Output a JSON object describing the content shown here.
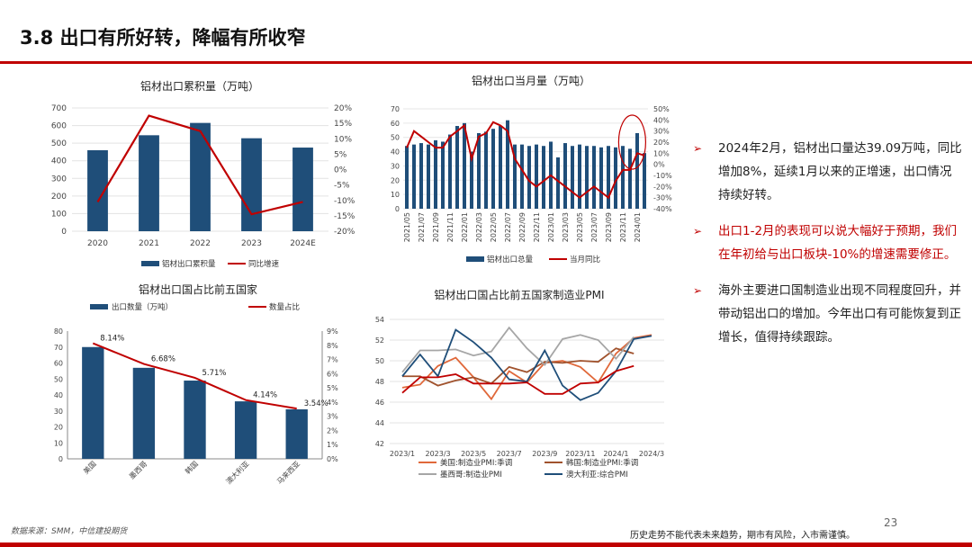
{
  "page": {
    "title": "3.8 出口有所好转，降幅有所收窄",
    "source": "数据来源：SMM，中信建投期货",
    "disclaimer": "历史走势不能代表未来趋势，期市有风险，入市需谨慎。",
    "page_number": "23",
    "colors": {
      "accent": "#c00000",
      "bar": "#1f4e79"
    }
  },
  "bullets": [
    {
      "text": "2024年2月，铝材出口量达39.09万吨，同比增加8%，延续1月以来的正增速，出口情况持续好转。",
      "highlight": false
    },
    {
      "text": "出口1-2月的表现可以说大幅好于预期，我们在年初给与出口板块-10%的增速需要修正。",
      "highlight": true
    },
    {
      "text": "海外主要进口国制造业出现不同程度回升，并带动铝出口的增加。今年出口有可能恢复到正增长，值得持续跟踪。",
      "highlight": false
    }
  ],
  "chart_data": [
    {
      "type": "bar",
      "title": "铝材出口累积量（万吨）",
      "categories": [
        "2020",
        "2021",
        "2022",
        "2023",
        "2024E"
      ],
      "ylim": [
        0,
        700
      ],
      "yticks": [
        "0",
        "100",
        "200",
        "300",
        "400",
        "500",
        "600",
        "700"
      ],
      "y2lim": [
        -20,
        20
      ],
      "y2ticks": [
        "-20%",
        "-15%",
        "-10%",
        "-5%",
        "0%",
        "5%",
        "10%",
        "15%",
        "20%"
      ],
      "series": [
        {
          "name": "铝材出口累积量",
          "kind": "bar",
          "color": "#1f4e79",
          "values": [
            460,
            545,
            615,
            528,
            475
          ]
        },
        {
          "name": "同比增速",
          "kind": "line",
          "axis": "right",
          "color": "#c00000",
          "values": [
            -10.5,
            17.5,
            12.5,
            -14.5,
            -10.5
          ]
        }
      ]
    },
    {
      "type": "bar",
      "title": "铝材出口当月量（万吨）",
      "categories": [
        "2021/05",
        "2021/06",
        "2021/07",
        "2021/08",
        "2021/09",
        "2021/10",
        "2021/11",
        "2021/12",
        "2022/01",
        "2022/02",
        "2022/03",
        "2022/04",
        "2022/05",
        "2022/06",
        "2022/07",
        "2022/08",
        "2022/09",
        "2022/10",
        "2022/11",
        "2022/12",
        "2023/01",
        "2023/02",
        "2023/03",
        "2023/04",
        "2023/05",
        "2023/06",
        "2023/07",
        "2023/08",
        "2023/09",
        "2023/10",
        "2023/11",
        "2023/12",
        "2024/01",
        "2024/02"
      ],
      "xticks": [
        "2021/05",
        "2021/07",
        "2021/09",
        "2021/11",
        "2022/01",
        "2022/03",
        "2022/05",
        "2022/07",
        "2022/09",
        "2022/11",
        "2023/01",
        "2023/03",
        "2023/05",
        "2023/07",
        "2023/09",
        "2023/11",
        "2024/01"
      ],
      "ylim": [
        0,
        70
      ],
      "yticks": [
        "0",
        "10",
        "20",
        "30",
        "40",
        "50",
        "60",
        "70"
      ],
      "y2lim": [
        -40,
        50
      ],
      "y2ticks": [
        "-40%",
        "-30%",
        "-20%",
        "-10%",
        "0%",
        "10%",
        "20%",
        "30%",
        "40%",
        "50%"
      ],
      "series": [
        {
          "name": "铝材出口总量",
          "kind": "bar",
          "color": "#1f4e79",
          "values": [
            44,
            45,
            46,
            45,
            48,
            47,
            52,
            58,
            60,
            40,
            53,
            54,
            56,
            58,
            62,
            45,
            45,
            44,
            45,
            44,
            47,
            36,
            46,
            44,
            45,
            44,
            44,
            43,
            44,
            43,
            44,
            42,
            53,
            39
          ]
        },
        {
          "name": "当月同比",
          "kind": "line",
          "axis": "right",
          "color": "#c00000",
          "values": [
            15,
            30,
            25,
            20,
            15,
            15,
            25,
            30,
            35,
            5,
            25,
            28,
            38,
            35,
            30,
            5,
            -5,
            -15,
            -20,
            -15,
            -10,
            -15,
            -20,
            -25,
            -30,
            -25,
            -20,
            -25,
            -30,
            -15,
            -5,
            -5,
            10,
            8
          ]
        }
      ]
    },
    {
      "type": "bar",
      "title": "铝材出口国占比前五国家",
      "categories": [
        "美国",
        "墨西哥",
        "韩国",
        "澳大利亚",
        "马来西亚"
      ],
      "ylim": [
        0,
        80
      ],
      "yticks": [
        "0",
        "10",
        "20",
        "30",
        "40",
        "50",
        "60",
        "70",
        "80"
      ],
      "y2lim": [
        0,
        9
      ],
      "y2ticks": [
        "0%",
        "1%",
        "2%",
        "3%",
        "4%",
        "5%",
        "6%",
        "7%",
        "8%",
        "9%"
      ],
      "data_labels": [
        "8.14%",
        "6.68%",
        "5.71%",
        "4.14%",
        "3.54%"
      ],
      "series": [
        {
          "name": "出口数量（万吨）",
          "kind": "bar",
          "color": "#1f4e79",
          "values": [
            70,
            57,
            49,
            36,
            31
          ]
        },
        {
          "name": "数量占比",
          "kind": "line",
          "axis": "right",
          "color": "#c00000",
          "values": [
            8.14,
            6.68,
            5.71,
            4.14,
            3.54
          ]
        }
      ]
    },
    {
      "type": "line",
      "title": "铝材出口国占比前五国家制造业PMI",
      "x": [
        "2023/1",
        "2023/2",
        "2023/3",
        "2023/4",
        "2023/5",
        "2023/6",
        "2023/7",
        "2023/8",
        "2023/9",
        "2023/10",
        "2023/11",
        "2023/12",
        "2024/1",
        "2024/2",
        "2024/3"
      ],
      "xticks": [
        "2023/1",
        "2023/3",
        "2023/5",
        "2023/7",
        "2023/9",
        "2023/11",
        "2024/1",
        "2024/3"
      ],
      "ylim": [
        42,
        54
      ],
      "yticks": [
        "42",
        "44",
        "46",
        "48",
        "50",
        "52",
        "54"
      ],
      "series": [
        {
          "name": "美国:制造业PMI:季调",
          "color": "#e0683a",
          "values": [
            47.4,
            47.7,
            49.5,
            50.3,
            48.4,
            46.3,
            49.0,
            47.9,
            49.8,
            50.0,
            49.4,
            47.9,
            50.7,
            52.2,
            52.5
          ]
        },
        {
          "name": "韩国:制造业PMI:季调",
          "color": "#a0522d",
          "values": [
            48.5,
            48.5,
            47.6,
            48.1,
            48.4,
            47.8,
            49.4,
            48.9,
            49.9,
            49.8,
            50.0,
            49.9,
            51.2,
            50.7,
            null
          ]
        },
        {
          "name": "墨西哥:制造业PMI",
          "color": "#a6a6a6",
          "values": [
            48.9,
            51.0,
            51.0,
            51.1,
            50.5,
            50.9,
            53.2,
            51.2,
            49.6,
            52.1,
            52.5,
            52.0,
            50.2,
            52.3,
            null
          ]
        },
        {
          "name": "澳大利亚:综合PMI",
          "color": "#1f4e79",
          "values": [
            48.5,
            50.6,
            48.5,
            53.0,
            51.8,
            50.3,
            48.2,
            48.0,
            51.0,
            47.6,
            46.2,
            46.9,
            49.0,
            52.1,
            52.4
          ]
        },
        {
          "name": "",
          "color": "#c00000",
          "values": [
            46.9,
            48.4,
            48.4,
            48.7,
            47.8,
            47.8,
            47.8,
            47.9,
            46.8,
            46.8,
            47.8,
            47.9,
            49.0,
            49.5,
            null
          ]
        }
      ]
    }
  ]
}
